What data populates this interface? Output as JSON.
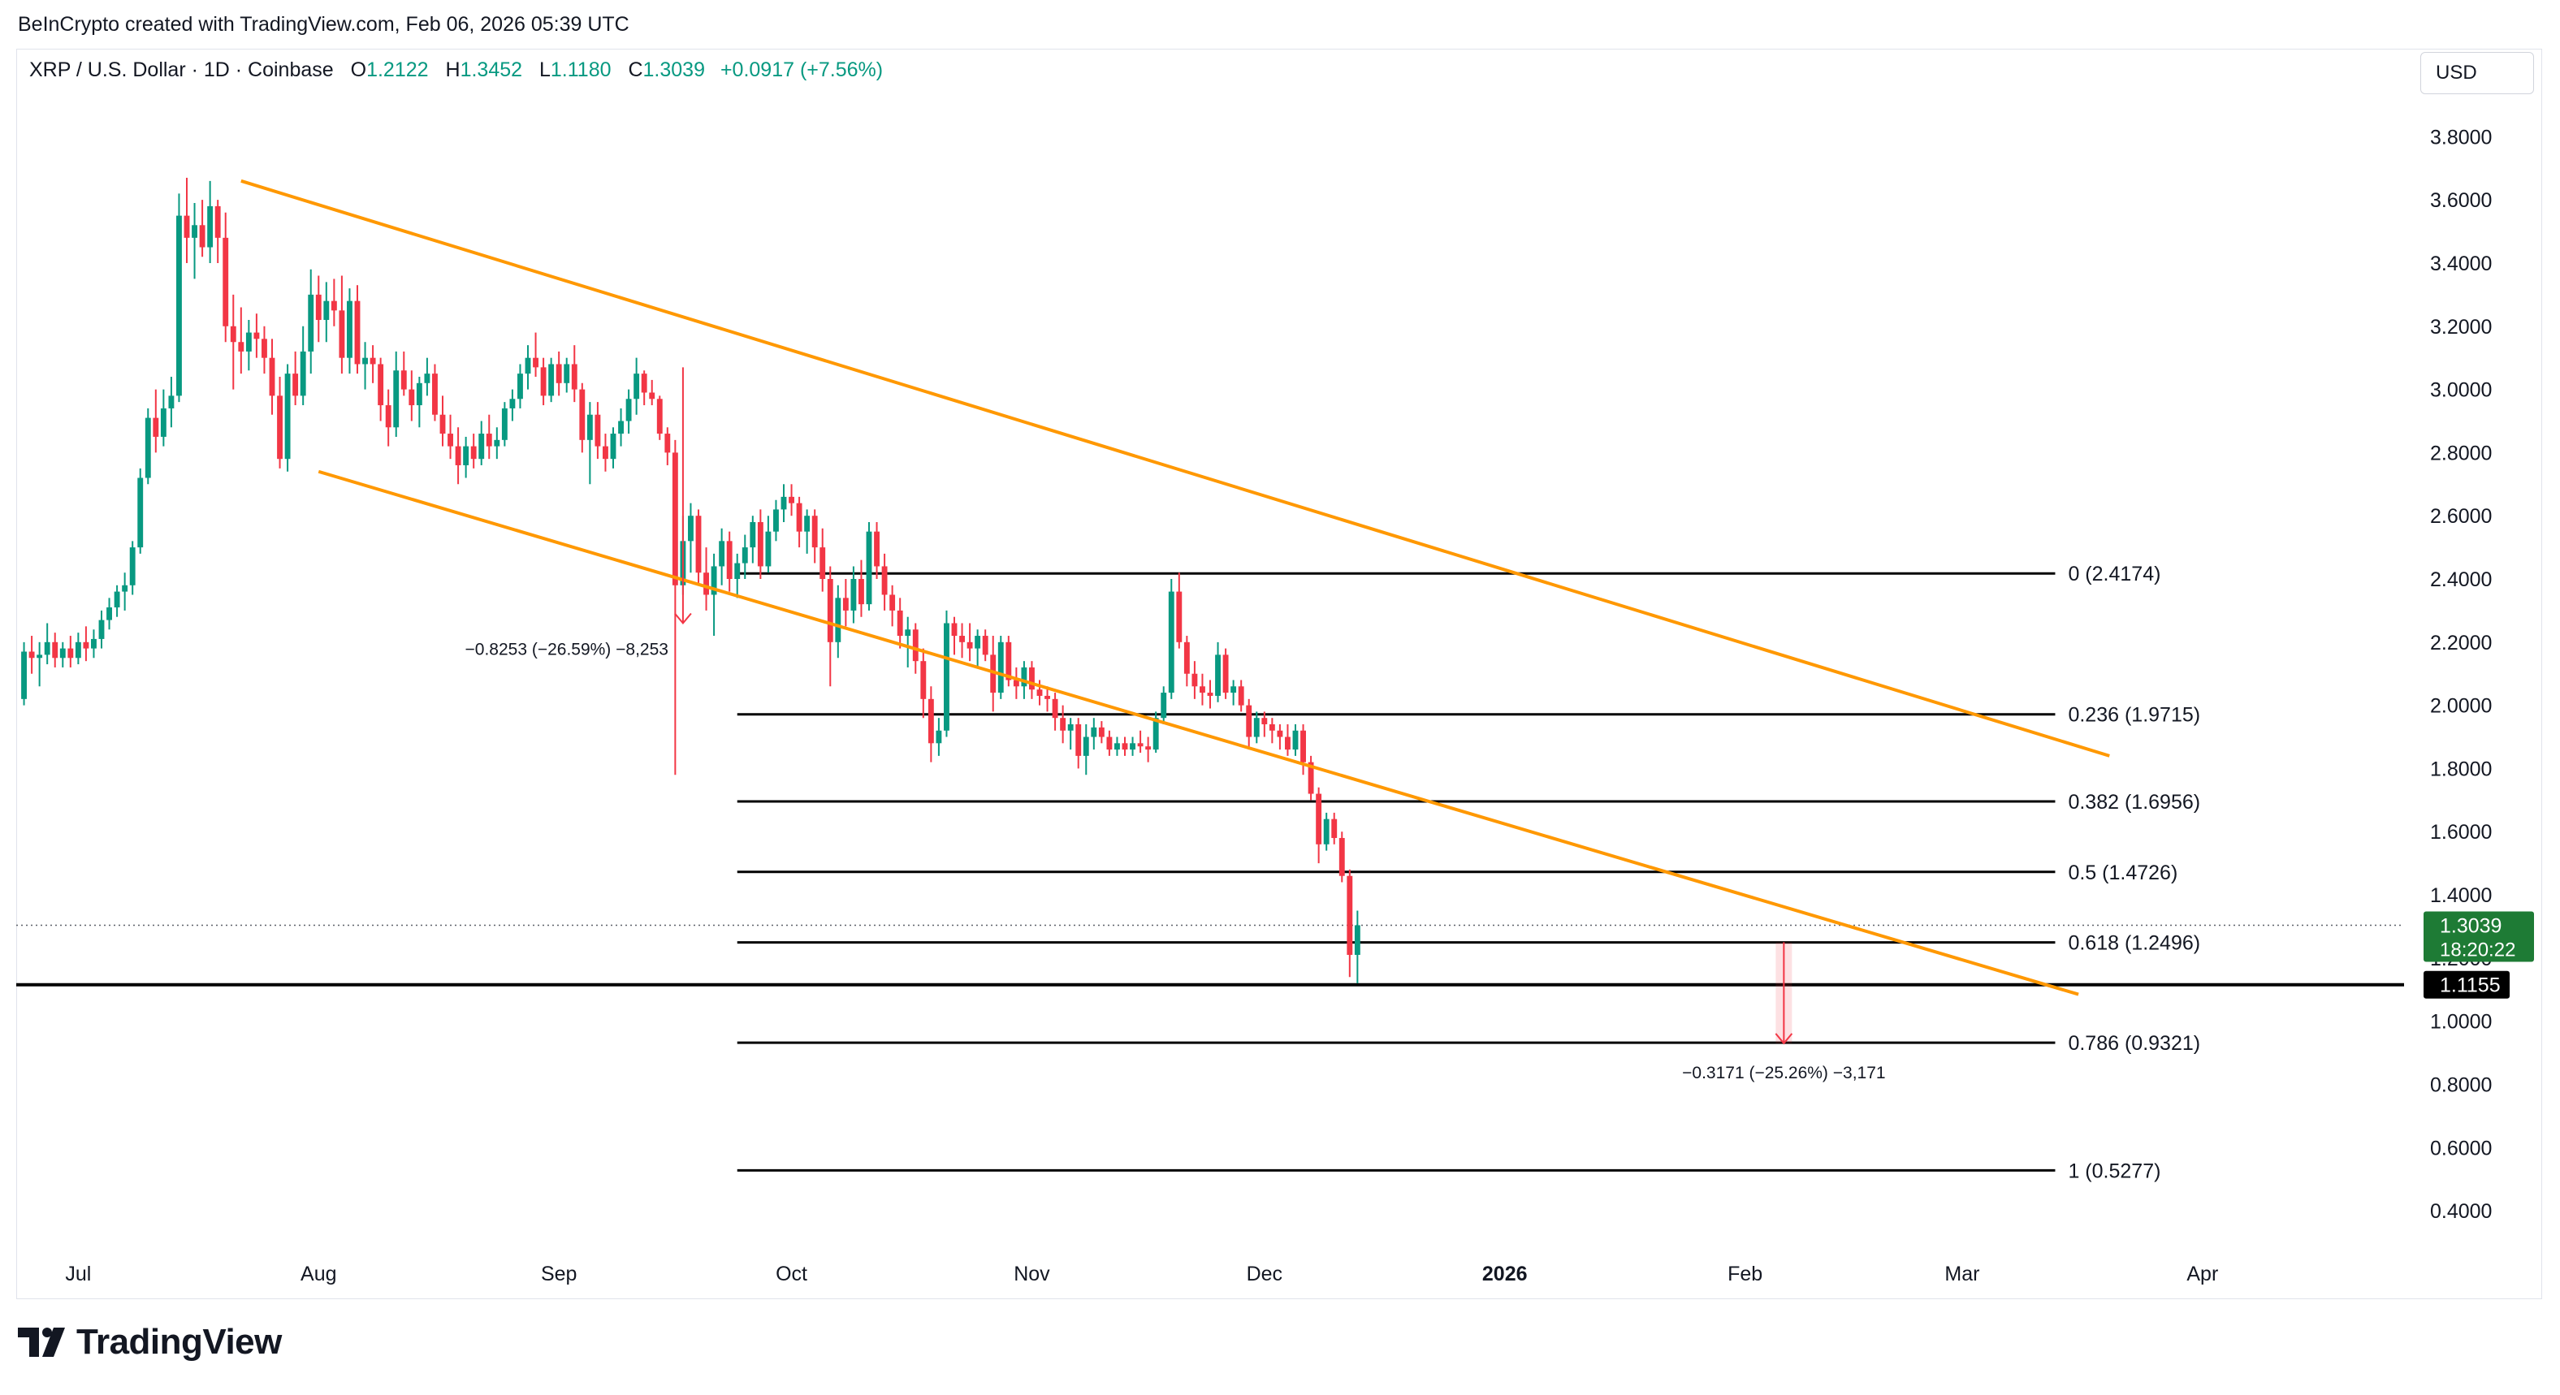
{
  "header": {
    "credit": "BeInCrypto created with TradingView.com, Feb 06, 2026 05:39 UTC"
  },
  "legend": {
    "symbol": "XRP / U.S. Dollar · 1D · Coinbase",
    "open_label": "O",
    "open": "1.2122",
    "high_label": "H",
    "high": "1.3452",
    "low_label": "L",
    "low": "1.1180",
    "close_label": "C",
    "close": "1.3039",
    "change": "+0.0917 (+7.56%)"
  },
  "currency_button": "USD",
  "brand": {
    "name": "TradingView"
  },
  "colors": {
    "up": "#089981",
    "down": "#f23645",
    "channel": "#ff9800",
    "fib_line": "#000000",
    "grid_text": "#131722",
    "price_badge": "#1e7b35"
  },
  "chart_data": {
    "type": "candlestick",
    "symbol": "XRP / U.S. Dollar",
    "timeframe": "1D",
    "exchange": "Coinbase",
    "y_axis": {
      "ylim": [
        0.3,
        3.95
      ],
      "ticks": [
        "3.8000",
        "3.6000",
        "3.4000",
        "3.2000",
        "3.0000",
        "2.8000",
        "2.6000",
        "2.4000",
        "2.2000",
        "2.0000",
        "1.8000",
        "1.6000",
        "1.4000",
        "1.2000",
        "1.0000",
        "0.8000",
        "0.6000",
        "0.4000"
      ]
    },
    "x_axis": {
      "tick_labels": [
        "Jul",
        "Aug",
        "Sep",
        "Oct",
        "Nov",
        "Dec",
        "2026",
        "Feb",
        "Mar",
        "Apr"
      ],
      "tick_days": [
        0,
        31,
        62,
        92,
        123,
        153,
        184,
        215,
        243,
        274
      ],
      "bold_labels": [
        "2026"
      ],
      "range_days": [
        -8,
        300
      ]
    },
    "series": {
      "name": "XRP/USD daily",
      "start_day": -7,
      "ohlc": [
        [
          2.02,
          2.2,
          2.0,
          2.17
        ],
        [
          2.17,
          2.22,
          2.1,
          2.15
        ],
        [
          2.15,
          2.2,
          2.06,
          2.16
        ],
        [
          2.16,
          2.26,
          2.13,
          2.2
        ],
        [
          2.2,
          2.23,
          2.12,
          2.15
        ],
        [
          2.15,
          2.2,
          2.12,
          2.18
        ],
        [
          2.18,
          2.22,
          2.12,
          2.15
        ],
        [
          2.15,
          2.23,
          2.13,
          2.2
        ],
        [
          2.2,
          2.25,
          2.14,
          2.18
        ],
        [
          2.18,
          2.24,
          2.15,
          2.21
        ],
        [
          2.21,
          2.3,
          2.18,
          2.27
        ],
        [
          2.27,
          2.34,
          2.24,
          2.31
        ],
        [
          2.31,
          2.38,
          2.28,
          2.36
        ],
        [
          2.36,
          2.42,
          2.3,
          2.38
        ],
        [
          2.38,
          2.52,
          2.35,
          2.5
        ],
        [
          2.5,
          2.75,
          2.48,
          2.72
        ],
        [
          2.72,
          2.94,
          2.7,
          2.91
        ],
        [
          2.91,
          3.0,
          2.8,
          2.85
        ],
        [
          2.85,
          3.0,
          2.82,
          2.94
        ],
        [
          2.94,
          3.04,
          2.88,
          2.98
        ],
        [
          2.98,
          3.62,
          2.96,
          3.55
        ],
        [
          3.55,
          3.67,
          3.4,
          3.48
        ],
        [
          3.48,
          3.59,
          3.35,
          3.52
        ],
        [
          3.52,
          3.6,
          3.42,
          3.45
        ],
        [
          3.45,
          3.66,
          3.4,
          3.58
        ],
        [
          3.58,
          3.6,
          3.4,
          3.48
        ],
        [
          3.48,
          3.56,
          3.15,
          3.2
        ],
        [
          3.2,
          3.3,
          3.0,
          3.15
        ],
        [
          3.15,
          3.26,
          3.05,
          3.12
        ],
        [
          3.12,
          3.22,
          3.06,
          3.18
        ],
        [
          3.18,
          3.24,
          3.1,
          3.16
        ],
        [
          3.16,
          3.2,
          3.05,
          3.1
        ],
        [
          3.1,
          3.16,
          2.92,
          2.98
        ],
        [
          2.98,
          3.04,
          2.75,
          2.78
        ],
        [
          2.78,
          3.08,
          2.74,
          3.05
        ],
        [
          3.05,
          3.12,
          2.95,
          2.98
        ],
        [
          2.98,
          3.2,
          2.95,
          3.12
        ],
        [
          3.12,
          3.38,
          3.05,
          3.3
        ],
        [
          3.3,
          3.36,
          3.15,
          3.22
        ],
        [
          3.22,
          3.34,
          3.15,
          3.28
        ],
        [
          3.28,
          3.35,
          3.2,
          3.25
        ],
        [
          3.25,
          3.36,
          3.05,
          3.1
        ],
        [
          3.1,
          3.32,
          3.05,
          3.28
        ],
        [
          3.28,
          3.33,
          3.05,
          3.08
        ],
        [
          3.08,
          3.15,
          3.0,
          3.1
        ],
        [
          3.1,
          3.14,
          3.02,
          3.08
        ],
        [
          3.08,
          3.1,
          2.9,
          2.95
        ],
        [
          2.95,
          3.0,
          2.82,
          2.88
        ],
        [
          2.88,
          3.12,
          2.85,
          3.06
        ],
        [
          3.06,
          3.12,
          2.98,
          3.0
        ],
        [
          3.0,
          3.06,
          2.9,
          2.95
        ],
        [
          2.95,
          3.04,
          2.88,
          3.02
        ],
        [
          3.02,
          3.1,
          2.98,
          3.05
        ],
        [
          3.05,
          3.08,
          2.9,
          2.92
        ],
        [
          2.92,
          2.98,
          2.82,
          2.86
        ],
        [
          2.86,
          2.92,
          2.78,
          2.82
        ],
        [
          2.82,
          2.88,
          2.7,
          2.76
        ],
        [
          2.76,
          2.85,
          2.72,
          2.82
        ],
        [
          2.82,
          2.86,
          2.75,
          2.78
        ],
        [
          2.78,
          2.9,
          2.76,
          2.86
        ],
        [
          2.86,
          2.92,
          2.78,
          2.82
        ],
        [
          2.82,
          2.88,
          2.78,
          2.84
        ],
        [
          2.84,
          2.96,
          2.82,
          2.94
        ],
        [
          2.94,
          3.0,
          2.9,
          2.97
        ],
        [
          2.97,
          3.08,
          2.94,
          3.05
        ],
        [
          3.05,
          3.14,
          3.0,
          3.1
        ],
        [
          3.1,
          3.18,
          3.04,
          3.07
        ],
        [
          3.07,
          3.1,
          2.95,
          2.98
        ],
        [
          2.98,
          3.1,
          2.96,
          3.08
        ],
        [
          3.08,
          3.12,
          2.98,
          3.02
        ],
        [
          3.02,
          3.1,
          2.99,
          3.08
        ],
        [
          3.08,
          3.14,
          2.96,
          3.0
        ],
        [
          3.0,
          3.02,
          2.8,
          2.84
        ],
        [
          2.84,
          2.96,
          2.7,
          2.92
        ],
        [
          2.92,
          2.96,
          2.78,
          2.82
        ],
        [
          2.82,
          2.86,
          2.74,
          2.78
        ],
        [
          2.78,
          2.88,
          2.75,
          2.86
        ],
        [
          2.86,
          2.94,
          2.82,
          2.9
        ],
        [
          2.9,
          3.0,
          2.86,
          2.97
        ],
        [
          2.97,
          3.1,
          2.92,
          3.05
        ],
        [
          3.05,
          3.06,
          2.95,
          2.99
        ],
        [
          2.99,
          3.03,
          2.95,
          2.97
        ],
        [
          2.97,
          2.98,
          2.84,
          2.86
        ],
        [
          2.86,
          2.88,
          2.76,
          2.8
        ],
        [
          2.8,
          2.84,
          1.78,
          2.38
        ],
        [
          2.38,
          2.6,
          2.35,
          2.52
        ],
        [
          2.52,
          2.64,
          2.42,
          2.6
        ],
        [
          2.6,
          2.62,
          2.38,
          2.42
        ],
        [
          2.42,
          2.5,
          2.3,
          2.35
        ],
        [
          2.35,
          2.48,
          2.22,
          2.44
        ],
        [
          2.44,
          2.56,
          2.38,
          2.52
        ],
        [
          2.52,
          2.55,
          2.36,
          2.4
        ],
        [
          2.4,
          2.48,
          2.34,
          2.45
        ],
        [
          2.45,
          2.54,
          2.4,
          2.5
        ],
        [
          2.5,
          2.6,
          2.45,
          2.58
        ],
        [
          2.58,
          2.62,
          2.4,
          2.44
        ],
        [
          2.44,
          2.6,
          2.42,
          2.55
        ],
        [
          2.55,
          2.65,
          2.52,
          2.62
        ],
        [
          2.62,
          2.7,
          2.58,
          2.66
        ],
        [
          2.66,
          2.7,
          2.6,
          2.64
        ],
        [
          2.64,
          2.66,
          2.5,
          2.55
        ],
        [
          2.55,
          2.62,
          2.48,
          2.6
        ],
        [
          2.6,
          2.62,
          2.45,
          2.5
        ],
        [
          2.5,
          2.56,
          2.36,
          2.4
        ],
        [
          2.4,
          2.44,
          2.06,
          2.2
        ],
        [
          2.2,
          2.38,
          2.15,
          2.34
        ],
        [
          2.34,
          2.4,
          2.25,
          2.3
        ],
        [
          2.3,
          2.44,
          2.26,
          2.4
        ],
        [
          2.4,
          2.46,
          2.28,
          2.32
        ],
        [
          2.32,
          2.58,
          2.3,
          2.55
        ],
        [
          2.55,
          2.58,
          2.4,
          2.44
        ],
        [
          2.44,
          2.48,
          2.3,
          2.35
        ],
        [
          2.35,
          2.38,
          2.25,
          2.3
        ],
        [
          2.3,
          2.34,
          2.18,
          2.22
        ],
        [
          2.22,
          2.28,
          2.12,
          2.24
        ],
        [
          2.24,
          2.26,
          2.1,
          2.14
        ],
        [
          2.14,
          2.18,
          1.96,
          2.02
        ],
        [
          2.02,
          2.06,
          1.82,
          1.88
        ],
        [
          1.88,
          1.96,
          1.84,
          1.92
        ],
        [
          1.92,
          2.3,
          1.9,
          2.26
        ],
        [
          2.26,
          2.28,
          2.16,
          2.22
        ],
        [
          2.22,
          2.26,
          2.15,
          2.2
        ],
        [
          2.2,
          2.26,
          2.14,
          2.18
        ],
        [
          2.18,
          2.24,
          2.12,
          2.22
        ],
        [
          2.22,
          2.24,
          2.14,
          2.16
        ],
        [
          2.16,
          2.22,
          1.98,
          2.04
        ],
        [
          2.04,
          2.22,
          2.02,
          2.2
        ],
        [
          2.2,
          2.22,
          2.06,
          2.08
        ],
        [
          2.08,
          2.12,
          2.02,
          2.06
        ],
        [
          2.06,
          2.14,
          2.02,
          2.12
        ],
        [
          2.12,
          2.14,
          2.02,
          2.05
        ],
        [
          2.05,
          2.08,
          2.0,
          2.03
        ],
        [
          2.03,
          2.06,
          1.98,
          2.02
        ],
        [
          2.02,
          2.04,
          1.92,
          1.96
        ],
        [
          1.96,
          2.0,
          1.88,
          1.92
        ],
        [
          1.92,
          1.96,
          1.86,
          1.94
        ],
        [
          1.94,
          1.96,
          1.8,
          1.84
        ],
        [
          1.84,
          1.94,
          1.78,
          1.9
        ],
        [
          1.9,
          1.96,
          1.86,
          1.93
        ],
        [
          1.93,
          1.95,
          1.88,
          1.9
        ],
        [
          1.9,
          1.92,
          1.84,
          1.86
        ],
        [
          1.86,
          1.9,
          1.84,
          1.88
        ],
        [
          1.88,
          1.9,
          1.84,
          1.86
        ],
        [
          1.86,
          1.9,
          1.84,
          1.88
        ],
        [
          1.88,
          1.92,
          1.85,
          1.87
        ],
        [
          1.87,
          1.9,
          1.82,
          1.86
        ],
        [
          1.86,
          1.98,
          1.85,
          1.96
        ],
        [
          1.96,
          2.06,
          1.94,
          2.04
        ],
        [
          2.04,
          2.4,
          2.02,
          2.36
        ],
        [
          2.36,
          2.42,
          2.18,
          2.2
        ],
        [
          2.2,
          2.22,
          2.06,
          2.1
        ],
        [
          2.1,
          2.14,
          2.02,
          2.06
        ],
        [
          2.06,
          2.1,
          2.0,
          2.04
        ],
        [
          2.04,
          2.08,
          1.99,
          2.03
        ],
        [
          2.03,
          2.2,
          2.01,
          2.16
        ],
        [
          2.16,
          2.18,
          2.02,
          2.04
        ],
        [
          2.04,
          2.08,
          2.0,
          2.06
        ],
        [
          2.06,
          2.08,
          1.98,
          2.0
        ],
        [
          2.0,
          2.02,
          1.86,
          1.9
        ],
        [
          1.9,
          1.98,
          1.88,
          1.96
        ],
        [
          1.96,
          1.98,
          1.9,
          1.94
        ],
        [
          1.94,
          1.96,
          1.88,
          1.92
        ],
        [
          1.92,
          1.94,
          1.86,
          1.9
        ],
        [
          1.9,
          1.94,
          1.84,
          1.86
        ],
        [
          1.86,
          1.94,
          1.84,
          1.92
        ],
        [
          1.92,
          1.94,
          1.78,
          1.82
        ],
        [
          1.82,
          1.84,
          1.7,
          1.72
        ],
        [
          1.72,
          1.74,
          1.5,
          1.56
        ],
        [
          1.56,
          1.66,
          1.54,
          1.64
        ],
        [
          1.64,
          1.66,
          1.56,
          1.58
        ],
        [
          1.58,
          1.6,
          1.44,
          1.46
        ],
        [
          1.46,
          1.48,
          1.14,
          1.21
        ],
        [
          1.21,
          1.35,
          1.12,
          1.3039
        ]
      ]
    },
    "channel": {
      "upper": {
        "from": {
          "day": 21,
          "price": 3.66
        },
        "to": {
          "day": 262,
          "price": 1.84
        }
      },
      "lower": {
        "from": {
          "day": 31,
          "price": 2.74
        },
        "to": {
          "day": 258,
          "price": 1.085
        }
      }
    },
    "fibonacci": {
      "start_day": 85,
      "end_day": 255,
      "levels": [
        {
          "label": "0 (2.4174)",
          "price": 2.4174
        },
        {
          "label": "0.236 (1.9715)",
          "price": 1.9715
        },
        {
          "label": "0.382 (1.6956)",
          "price": 1.6956
        },
        {
          "label": "0.5 (1.4726)",
          "price": 1.4726
        },
        {
          "label": "0.618 (1.2496)",
          "price": 1.2496
        },
        {
          "label": "0.786 (0.9321)",
          "price": 0.9321
        },
        {
          "label": "1 (0.5277)",
          "price": 0.5277
        }
      ]
    },
    "support_line": {
      "price": 1.1155,
      "label": "1.1155"
    },
    "last_price": {
      "price": 1.3039,
      "label": "1.3039",
      "countdown": "18:20:22"
    },
    "measurements": [
      {
        "day": 78,
        "from_price": 3.07,
        "to_price": 2.26,
        "label": "−0.8253 (−26.59%) −8,253",
        "label_price": 2.18,
        "label_day": 63
      },
      {
        "day": 220,
        "from_price": 1.25,
        "to_price": 0.93,
        "label": "−0.3171 (−25.26%) −3,171",
        "label_price": 0.84,
        "label_day": 220
      }
    ]
  }
}
